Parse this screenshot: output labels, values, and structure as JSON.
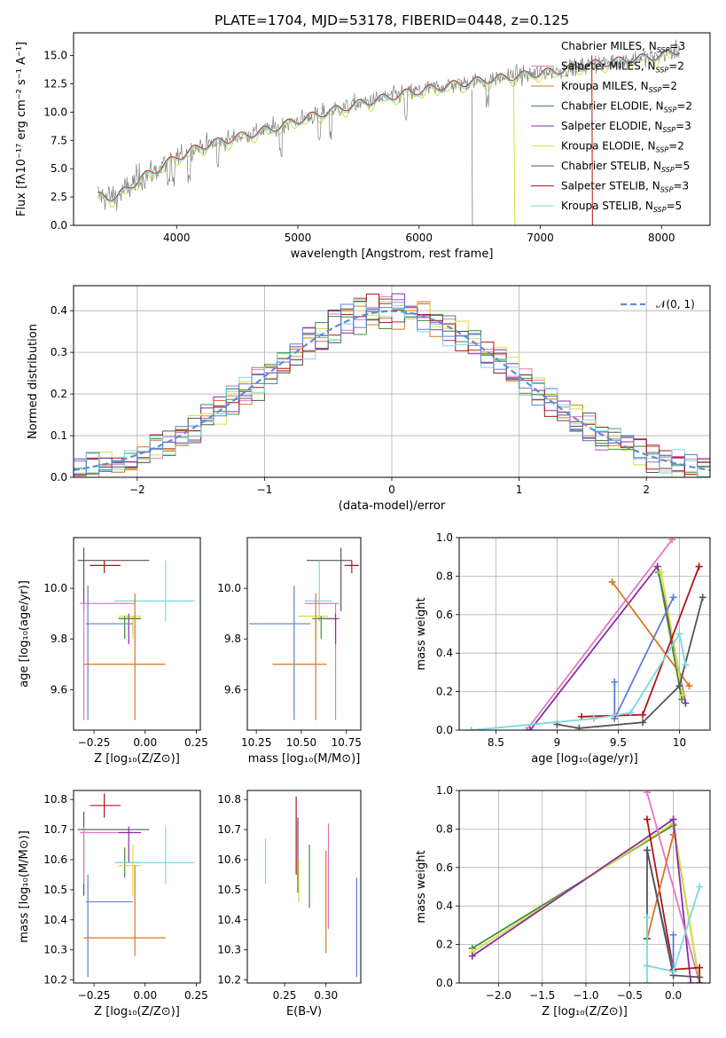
{
  "colors": {
    "Chabrier MILES": "#ffffff",
    "Salpeter MILES": "#e377c2",
    "Kroupa MILES": "#d9761e",
    "Chabrier ELODIE": "#3f8f3f",
    "Salpeter ELODIE": "#8a2ca8",
    "Kroupa ELODIE": "#d7df3a",
    "Chabrier STELIB": "#555555",
    "Salpeter STELIB": "#b01515",
    "Kroupa STELIB": "#7ad9df",
    "blue": "#5b7fd8",
    "gauss": "#5b8fd6",
    "spectrum": "#808080"
  },
  "chart_data": [
    {
      "id": "spectrum",
      "type": "line",
      "title": "PLATE=1704, MJD=53178, FIBERID=0448, z=0.125",
      "xlabel": "wavelength [Angstrom, rest frame]",
      "ylabel": "Flux [fλ10⁻¹⁷ erg cm⁻² s⁻¹ A⁻¹]",
      "xlim": [
        3150,
        8400
      ],
      "ylim": [
        0,
        17
      ],
      "xticks": [
        4000,
        5000,
        6000,
        7000,
        8000
      ],
      "yticks": [
        0.0,
        2.5,
        5.0,
        7.5,
        10.0,
        12.5,
        15.0
      ],
      "legend_position": "top-right",
      "legend": [
        {
          "pre": "Chabrier MILES, N",
          "sub": "SSP",
          "post": "=3",
          "color": "#ffffff"
        },
        {
          "pre": "Salpeter MILES, N",
          "sub": "SSP",
          "post": "=2",
          "color": "#e377c2"
        },
        {
          "pre": "Kroupa MILES, N",
          "sub": "SSP",
          "post": "=2",
          "color": "#d9761e"
        },
        {
          "pre": "Chabrier ELODIE, N",
          "sub": "SSP",
          "post": "=2",
          "color": "#3f8f3f"
        },
        {
          "pre": "Salpeter ELODIE, N",
          "sub": "SSP",
          "post": "=3",
          "color": "#8a2ca8"
        },
        {
          "pre": "Kroupa ELODIE, N",
          "sub": "SSP",
          "post": "=2",
          "color": "#d7df3a"
        },
        {
          "pre": "Chabrier STELIB, N",
          "sub": "SSP",
          "post": "=5",
          "color": "#555555"
        },
        {
          "pre": "Salpeter STELIB, N",
          "sub": "SSP",
          "post": "=3",
          "color": "#b01515"
        },
        {
          "pre": "Kroupa STELIB, N",
          "sub": "SSP",
          "post": "=5",
          "color": "#7ad9df"
        }
      ],
      "continuum": {
        "x": [
          3350,
          3500,
          3600,
          3700,
          3800,
          3900,
          4000,
          4200,
          4500,
          4800,
          5000,
          5300,
          5600,
          5900,
          6200,
          6500,
          6800,
          7100,
          7400,
          7700,
          8000,
          8150
        ],
        "y": [
          2.6,
          2.5,
          3.3,
          4.2,
          4.7,
          5.4,
          6.0,
          7.0,
          7.8,
          8.6,
          9.3,
          10.2,
          11.0,
          11.7,
          12.3,
          12.8,
          13.2,
          13.6,
          14.2,
          14.6,
          15.0,
          15.5
        ]
      }
    },
    {
      "id": "residuals",
      "type": "step",
      "xlabel": "(data-model)/error",
      "ylabel": "Normed distribution",
      "xlim": [
        -2.5,
        2.5
      ],
      "ylim": [
        0,
        0.46
      ],
      "xticks": [
        -2,
        -1,
        0,
        1,
        2
      ],
      "xtick_labels": [
        "−2",
        "−1",
        "0",
        "1",
        "2"
      ],
      "yticks": [
        0.0,
        0.1,
        0.2,
        0.3,
        0.4
      ],
      "grid": true,
      "legend_position": "top-right",
      "gauss_label": "𝒩(0, 1)",
      "bin_width": 0.1
    },
    {
      "id": "age_vs_Z",
      "type": "errorbar",
      "xlabel": "Z [log₁₀(Z/Z⊙)]",
      "ylabel": "age  [log₁₀(age/yr)]",
      "xlim": [
        -0.35,
        0.27
      ],
      "ylim": [
        9.44,
        10.2
      ],
      "xticks": [
        -0.25,
        0.0,
        0.25
      ],
      "xtick_labels": [
        "−0.25",
        "0.00",
        "0.25"
      ],
      "yticks": [
        9.6,
        9.8,
        10.0
      ],
      "points": [
        {
          "model": "Chabrier STELIB",
          "x": -0.3,
          "y": 10.11,
          "xerr": [
            0.03,
            0.32
          ],
          "yerr": [
            0.2,
            0.05
          ]
        },
        {
          "model": "Salpeter STELIB",
          "x": -0.2,
          "y": 10.09,
          "xerr": [
            0.07,
            0.08
          ],
          "yerr": [
            0.03,
            0.02
          ]
        },
        {
          "model": "Kroupa STELIB",
          "x": 0.1,
          "y": 9.95,
          "xerr": [
            0.25,
            0.14
          ],
          "yerr": [
            0.08,
            0.16
          ]
        },
        {
          "model": "Salpeter MILES",
          "x": -0.3,
          "y": 9.94,
          "xerr": [
            0.02,
            0.25
          ],
          "yerr": [
            0.46,
            0.0
          ]
        },
        {
          "model": "Kroupa ELODIE",
          "x": -0.06,
          "y": 9.89,
          "xerr": [
            0.07,
            0.04
          ],
          "yerr": [
            0.09,
            0.0
          ]
        },
        {
          "model": "Salpeter ELODIE",
          "x": -0.08,
          "y": 9.88,
          "xerr": [
            0.05,
            0.06
          ],
          "yerr": [
            0.1,
            0.02
          ]
        },
        {
          "model": "Chabrier ELODIE",
          "x": -0.1,
          "y": 9.88,
          "xerr": [
            0.03,
            0.08
          ],
          "yerr": [
            0.08,
            0.01
          ]
        },
        {
          "model": "Blue",
          "x": -0.28,
          "y": 9.86,
          "xerr": [
            0.01,
            0.22
          ],
          "yerr": [
            0.38,
            0.15
          ]
        },
        {
          "model": "Kroupa MILES",
          "x": -0.05,
          "y": 9.7,
          "xerr": [
            0.25,
            0.15
          ],
          "yerr": [
            0.22,
            0.28
          ]
        }
      ]
    },
    {
      "id": "age_vs_mass",
      "type": "errorbar",
      "xlabel": "mass [log₁₀(M/M⊙)]",
      "xlim": [
        10.2,
        10.83
      ],
      "ylim": [
        9.44,
        10.2
      ],
      "xticks": [
        10.25,
        10.5,
        10.75
      ],
      "xtick_labels": [
        "10.25",
        "10.50",
        "10.75"
      ],
      "yticks": [
        9.6,
        9.8,
        10.0
      ],
      "points": [
        {
          "model": "Chabrier STELIB",
          "x": 10.72,
          "y": 10.11,
          "xerr": [
            0.19,
            0.06
          ],
          "yerr": [
            0.2,
            0.05
          ]
        },
        {
          "model": "Salpeter STELIB",
          "x": 10.78,
          "y": 10.09,
          "xerr": [
            0.04,
            0.04
          ],
          "yerr": [
            0.03,
            0.02
          ]
        },
        {
          "model": "Kroupa STELIB",
          "x": 10.6,
          "y": 9.95,
          "xerr": [
            0.08,
            0.07
          ],
          "yerr": [
            0.08,
            0.16
          ]
        },
        {
          "model": "Salpeter MILES",
          "x": 10.69,
          "y": 9.94,
          "xerr": [
            0.17,
            0.02
          ],
          "yerr": [
            0.46,
            0.0
          ]
        },
        {
          "model": "Kroupa ELODIE",
          "x": 10.58,
          "y": 9.89,
          "xerr": [
            0.1,
            0.07
          ],
          "yerr": [
            0.09,
            0.0
          ]
        },
        {
          "model": "Salpeter ELODIE",
          "x": 10.69,
          "y": 9.88,
          "xerr": [
            0.1,
            0.02
          ],
          "yerr": [
            0.1,
            0.02
          ]
        },
        {
          "model": "Chabrier ELODIE",
          "x": 10.61,
          "y": 9.88,
          "xerr": [
            0.05,
            0.04
          ],
          "yerr": [
            0.08,
            0.01
          ]
        },
        {
          "model": "Blue",
          "x": 10.46,
          "y": 9.86,
          "xerr": [
            0.25,
            0.09
          ],
          "yerr": [
            0.38,
            0.15
          ]
        },
        {
          "model": "Kroupa MILES",
          "x": 10.58,
          "y": 9.7,
          "xerr": [
            0.24,
            0.06
          ],
          "yerr": [
            0.22,
            0.28
          ]
        }
      ]
    },
    {
      "id": "weight_vs_age",
      "type": "line",
      "xlabel": "age  [log₁₀(age/yr)]",
      "ylabel": "mass weight",
      "xlim": [
        8.2,
        10.25
      ],
      "ylim": [
        0,
        1
      ],
      "xticks": [
        8.5,
        9.0,
        9.5,
        10.0
      ],
      "yticks": [
        0.0,
        0.2,
        0.4,
        0.6,
        0.8,
        1.0
      ],
      "grid": true,
      "series": [
        {
          "model": "Salpeter MILES",
          "x": [
            8.75,
            9.94
          ],
          "y": [
            0.0,
            0.99
          ]
        },
        {
          "model": "Salpeter ELODIE",
          "x": [
            8.78,
            9.82,
            10.05
          ],
          "y": [
            0.0,
            0.85,
            0.14
          ]
        },
        {
          "model": "Kroupa MILES",
          "x": [
            9.45,
            10.08
          ],
          "y": [
            0.77,
            0.23
          ]
        },
        {
          "model": "Chabrier ELODIE",
          "x": [
            9.83,
            10.02
          ],
          "y": [
            0.82,
            0.16
          ]
        },
        {
          "model": "Kroupa ELODIE",
          "x": [
            9.85,
            10.03
          ],
          "y": [
            0.82,
            0.18
          ]
        },
        {
          "model": "Blue",
          "x": [
            9.47,
            9.47,
            9.95
          ],
          "y": [
            0.25,
            0.06,
            0.69
          ]
        },
        {
          "model": "Salpeter STELIB",
          "x": [
            9.2,
            9.7,
            10.16
          ],
          "y": [
            0.07,
            0.08,
            0.85
          ]
        },
        {
          "model": "Chabrier STELIB",
          "x": [
            9.0,
            9.18,
            9.7,
            10.0,
            10.19
          ],
          "y": [
            0.03,
            0.01,
            0.04,
            0.23,
            0.69
          ]
        },
        {
          "model": "Kroupa STELIB",
          "x": [
            8.3,
            9.3,
            9.6,
            10.0,
            10.05
          ],
          "y": [
            0.0,
            0.06,
            0.09,
            0.5,
            0.34
          ]
        }
      ]
    },
    {
      "id": "mass_vs_Z",
      "type": "errorbar",
      "xlabel": "Z [log₁₀(Z/Z⊙)]",
      "ylabel": "mass [log₁₀(M/M⊙)]",
      "xlim": [
        -0.35,
        0.27
      ],
      "ylim": [
        10.19,
        10.83
      ],
      "xticks": [
        -0.25,
        0.0,
        0.25
      ],
      "xtick_labels": [
        "−0.25",
        "0.00",
        "0.25"
      ],
      "yticks": [
        10.2,
        10.3,
        10.4,
        10.5,
        10.6,
        10.7,
        10.8
      ],
      "points": [
        {
          "model": "Salpeter STELIB",
          "x": -0.2,
          "y": 10.78,
          "xerr": [
            0.07,
            0.08
          ],
          "yerr": [
            0.04,
            0.04
          ]
        },
        {
          "model": "Chabrier STELIB",
          "x": -0.3,
          "y": 10.7,
          "xerr": [
            0.03,
            0.32
          ],
          "yerr": [
            0.22,
            0.06
          ]
        },
        {
          "model": "Salpeter MILES",
          "x": -0.3,
          "y": 10.69,
          "xerr": [
            0.02,
            0.25
          ],
          "yerr": [
            0.17,
            0.02
          ]
        },
        {
          "model": "Salpeter ELODIE",
          "x": -0.08,
          "y": 10.69,
          "xerr": [
            0.05,
            0.06
          ],
          "yerr": [
            0.1,
            0.02
          ]
        },
        {
          "model": "Chabrier ELODIE",
          "x": -0.1,
          "y": 10.59,
          "xerr": [
            0.03,
            0.08
          ],
          "yerr": [
            0.05,
            0.05
          ]
        },
        {
          "model": "Kroupa ELODIE",
          "x": -0.06,
          "y": 10.58,
          "xerr": [
            0.07,
            0.04
          ],
          "yerr": [
            0.1,
            0.07
          ]
        },
        {
          "model": "Kroupa STELIB",
          "x": 0.1,
          "y": 10.59,
          "xerr": [
            0.25,
            0.14
          ],
          "yerr": [
            0.07,
            0.12
          ]
        },
        {
          "model": "Blue",
          "x": -0.28,
          "y": 10.46,
          "xerr": [
            0.01,
            0.22
          ],
          "yerr": [
            0.25,
            0.09
          ]
        },
        {
          "model": "Kroupa MILES",
          "x": -0.05,
          "y": 10.34,
          "xerr": [
            0.25,
            0.15
          ],
          "yerr": [
            0.06,
            0.24
          ]
        }
      ]
    },
    {
      "id": "mass_vs_EBV",
      "type": "errorbar",
      "xlabel": "E(B-V)",
      "xlim": [
        0.205,
        0.342
      ],
      "ylim": [
        10.19,
        10.83
      ],
      "xticks": [
        0.25,
        0.3
      ],
      "xtick_labels": [
        "0.25",
        "0.30"
      ],
      "yticks": [
        10.2,
        10.3,
        10.4,
        10.5,
        10.6,
        10.7,
        10.8
      ],
      "points": [
        {
          "model": "Kroupa STELIB",
          "x": 0.227,
          "y": 10.59,
          "yerr": [
            0.07,
            0.08
          ]
        },
        {
          "model": "Salpeter STELIB",
          "x": 0.264,
          "y": 10.75,
          "yerr": [
            0.2,
            0.06
          ]
        },
        {
          "model": "Chabrier STELIB",
          "x": 0.266,
          "y": 10.65,
          "yerr": [
            0.16,
            0.09
          ]
        },
        {
          "model": "Kroupa ELODIE",
          "x": 0.267,
          "y": 10.55,
          "yerr": [
            0.09,
            0.05
          ]
        },
        {
          "model": "Chabrier ELODIE",
          "x": 0.28,
          "y": 10.54,
          "yerr": [
            0.1,
            0.11
          ]
        },
        {
          "model": "Kroupa MILES",
          "x": 0.3,
          "y": 10.46,
          "yerr": [
            0.17,
            0.17
          ]
        },
        {
          "model": "Salpeter MILES",
          "x": 0.303,
          "y": 10.55,
          "yerr": [
            0.18,
            0.17
          ]
        },
        {
          "model": "Blue",
          "x": 0.337,
          "y": 10.38,
          "yerr": [
            0.17,
            0.16
          ]
        }
      ]
    },
    {
      "id": "weight_vs_Z",
      "type": "line",
      "xlabel": "Z [log₁₀(Z/Z⊙)]",
      "ylabel": "mass weight",
      "xlim": [
        -2.45,
        0.42
      ],
      "ylim": [
        0,
        1
      ],
      "xticks": [
        -2.0,
        -1.5,
        -1.0,
        -0.5,
        0.0
      ],
      "xtick_labels": [
        "−2.0",
        "−1.5",
        "−1.0",
        "−0.5",
        "0.0"
      ],
      "yticks": [
        0.0,
        0.2,
        0.4,
        0.6,
        0.8,
        1.0
      ],
      "grid": true,
      "series": [
        {
          "model": "Chabrier ELODIE",
          "x": [
            -2.3,
            0.0,
            0.3
          ],
          "y": [
            0.18,
            0.82,
            0.0
          ]
        },
        {
          "model": "Kroupa ELODIE",
          "x": [
            -2.3,
            0.0,
            0.3
          ],
          "y": [
            0.16,
            0.83,
            0.0
          ]
        },
        {
          "model": "Salpeter ELODIE",
          "x": [
            -2.3,
            0.0,
            0.2
          ],
          "y": [
            0.14,
            0.85,
            0.0
          ]
        },
        {
          "model": "Salpeter MILES",
          "x": [
            -0.3,
            0.3
          ],
          "y": [
            0.99,
            0.0
          ]
        },
        {
          "model": "Salpeter STELIB",
          "x": [
            -0.3,
            0.0,
            0.3,
            0.3
          ],
          "y": [
            0.85,
            0.07,
            0.08,
            0.0
          ]
        },
        {
          "model": "Kroupa MILES",
          "x": [
            -0.3,
            0.0
          ],
          "y": [
            0.23,
            0.77
          ]
        },
        {
          "model": "Blue",
          "x": [
            -0.3,
            0.0,
            0.0
          ],
          "y": [
            0.69,
            0.06,
            0.25
          ]
        },
        {
          "model": "Chabrier STELIB",
          "x": [
            -0.3,
            -0.3,
            0.0,
            0.3
          ],
          "y": [
            0.23,
            0.69,
            0.04,
            0.03
          ]
        },
        {
          "model": "Kroupa STELIB",
          "x": [
            -0.3,
            -0.3,
            -0.3,
            0.0,
            0.3
          ],
          "y": [
            0.0,
            0.34,
            0.09,
            0.06,
            0.5
          ]
        }
      ]
    }
  ]
}
